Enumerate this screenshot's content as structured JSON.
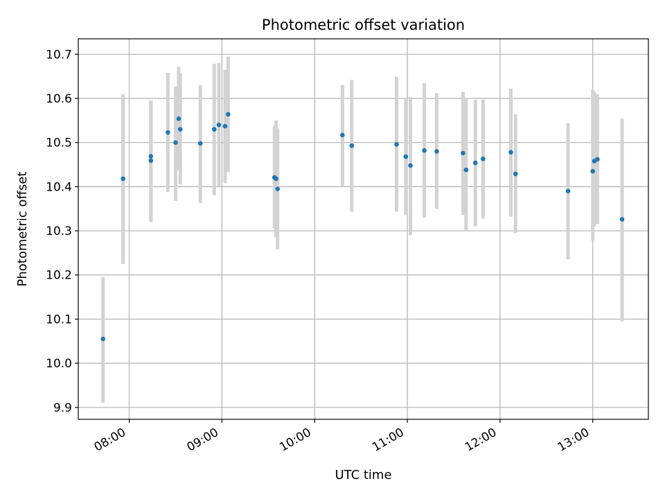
{
  "chart_data": {
    "type": "scatter",
    "title": "Photometric offset variation",
    "xlabel": "UTC time",
    "ylabel": "Photometric offset",
    "x_unit": "time of day (HH:MM, UTC)",
    "xlim": [
      "07:27",
      "13:36"
    ],
    "ylim": [
      9.873,
      10.735
    ],
    "x_ticks": [
      "08:00",
      "09:00",
      "10:00",
      "11:00",
      "12:00",
      "13:00"
    ],
    "y_ticks": [
      "9.9",
      "10.0",
      "10.1",
      "10.2",
      "10.3",
      "10.4",
      "10.5",
      "10.6",
      "10.7"
    ],
    "grid": true,
    "legend": "none",
    "colors": {
      "point": "#1f77b4",
      "errorbar": "#d3d3d3",
      "grid": "#b0b0b0"
    },
    "points": [
      {
        "x": "07:43",
        "y": 10.055,
        "lo": 9.91,
        "hi": 10.195
      },
      {
        "x": "07:56",
        "y": 10.418,
        "lo": 10.225,
        "hi": 10.61
      },
      {
        "x": "08:14",
        "y": 10.469,
        "lo": 10.32,
        "hi": 10.595
      },
      {
        "x": "08:14",
        "y": 10.459,
        "lo": 10.32,
        "hi": 10.595
      },
      {
        "x": "08:25",
        "y": 10.523,
        "lo": 10.388,
        "hi": 10.658
      },
      {
        "x": "08:30",
        "y": 10.5,
        "lo": 10.368,
        "hi": 10.627
      },
      {
        "x": "08:32",
        "y": 10.554,
        "lo": 10.437,
        "hi": 10.672
      },
      {
        "x": "08:33",
        "y": 10.53,
        "lo": 10.405,
        "hi": 10.657
      },
      {
        "x": "08:46",
        "y": 10.498,
        "lo": 10.363,
        "hi": 10.63
      },
      {
        "x": "08:55",
        "y": 10.53,
        "lo": 10.381,
        "hi": 10.678
      },
      {
        "x": "08:58",
        "y": 10.54,
        "lo": 10.4,
        "hi": 10.68
      },
      {
        "x": "09:02",
        "y": 10.537,
        "lo": 10.408,
        "hi": 10.665
      },
      {
        "x": "09:04",
        "y": 10.564,
        "lo": 10.433,
        "hi": 10.695
      },
      {
        "x": "09:34",
        "y": 10.421,
        "lo": 10.305,
        "hi": 10.537
      },
      {
        "x": "09:35",
        "y": 10.418,
        "lo": 10.285,
        "hi": 10.55
      },
      {
        "x": "09:36",
        "y": 10.395,
        "lo": 10.258,
        "hi": 10.532
      },
      {
        "x": "10:18",
        "y": 10.517,
        "lo": 10.4,
        "hi": 10.63
      },
      {
        "x": "10:24",
        "y": 10.493,
        "lo": 10.343,
        "hi": 10.642
      },
      {
        "x": "10:53",
        "y": 10.496,
        "lo": 10.343,
        "hi": 10.649
      },
      {
        "x": "10:59",
        "y": 10.468,
        "lo": 10.336,
        "hi": 10.6
      },
      {
        "x": "11:02",
        "y": 10.448,
        "lo": 10.29,
        "hi": 10.603
      },
      {
        "x": "11:11",
        "y": 10.482,
        "lo": 10.33,
        "hi": 10.635
      },
      {
        "x": "11:19",
        "y": 10.48,
        "lo": 10.35,
        "hi": 10.612
      },
      {
        "x": "11:36",
        "y": 10.476,
        "lo": 10.336,
        "hi": 10.615
      },
      {
        "x": "11:38",
        "y": 10.438,
        "lo": 10.3,
        "hi": 10.6
      },
      {
        "x": "11:44",
        "y": 10.454,
        "lo": 10.31,
        "hi": 10.597
      },
      {
        "x": "11:49",
        "y": 10.463,
        "lo": 10.328,
        "hi": 10.597
      },
      {
        "x": "12:07",
        "y": 10.478,
        "lo": 10.332,
        "hi": 10.622
      },
      {
        "x": "12:10",
        "y": 10.429,
        "lo": 10.295,
        "hi": 10.564
      },
      {
        "x": "12:44",
        "y": 10.39,
        "lo": 10.235,
        "hi": 10.544
      },
      {
        "x": "13:00",
        "y": 10.435,
        "lo": 10.278,
        "hi": 10.62
      },
      {
        "x": "13:01",
        "y": 10.458,
        "lo": 10.31,
        "hi": 10.615
      },
      {
        "x": "13:03",
        "y": 10.462,
        "lo": 10.315,
        "hi": 10.61
      },
      {
        "x": "13:19",
        "y": 10.326,
        "lo": 10.095,
        "hi": 10.554
      }
    ]
  }
}
